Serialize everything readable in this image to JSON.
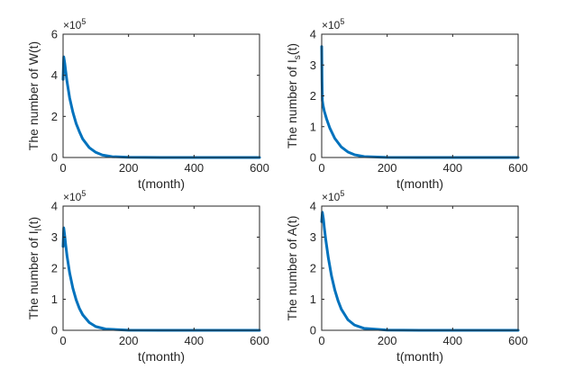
{
  "chart_data": [
    {
      "type": "line",
      "title": "",
      "xlabel": "t(month)",
      "ylabel": "The number of W(t)",
      "ylabel_main": "The number of W(t)",
      "ylabel_sub": "",
      "ylabel_tail": "",
      "xlim": [
        0,
        600
      ],
      "ylim": [
        0,
        6
      ],
      "xticks": [
        "0",
        "200",
        "400",
        "600"
      ],
      "yticks": [
        "0",
        "2",
        "4",
        "6"
      ],
      "exponent": "×10",
      "exponent_power": "5",
      "series": [
        {
          "name": "W(t)",
          "color": "#0072BD",
          "x": [
            0,
            2,
            5,
            8,
            12,
            20,
            30,
            40,
            50,
            60,
            80,
            100,
            120,
            150,
            200,
            300,
            400,
            600
          ],
          "y": [
            3.8,
            4.9,
            4.6,
            4.2,
            3.7,
            2.9,
            2.2,
            1.65,
            1.25,
            0.9,
            0.48,
            0.25,
            0.12,
            0.04,
            0.01,
            0.0,
            0.0,
            0.0
          ]
        }
      ]
    },
    {
      "type": "line",
      "title": "",
      "xlabel": "t(month)",
      "ylabel": "The number of Is(t)",
      "ylabel_main": "The number of I",
      "ylabel_sub": "s",
      "ylabel_tail": "(t)",
      "xlim": [
        0,
        600
      ],
      "ylim": [
        0,
        4
      ],
      "xticks": [
        "0",
        "200",
        "400",
        "600"
      ],
      "yticks": [
        "0",
        "1",
        "2",
        "3",
        "4"
      ],
      "exponent": "×10",
      "exponent_power": "5",
      "series": [
        {
          "name": "Is(t)",
          "color": "#0072BD",
          "x": [
            0,
            1,
            2,
            4,
            8,
            15,
            25,
            40,
            60,
            80,
            100,
            130,
            200,
            300,
            400,
            600
          ],
          "y": [
            3.6,
            2.5,
            1.85,
            1.7,
            1.5,
            1.25,
            0.95,
            0.62,
            0.34,
            0.18,
            0.09,
            0.03,
            0.005,
            0.0,
            0.0,
            0.0
          ]
        }
      ]
    },
    {
      "type": "line",
      "title": "",
      "xlabel": "t(month)",
      "ylabel": "The number of Il(t)",
      "ylabel_main": "The number of I",
      "ylabel_sub": "l",
      "ylabel_tail": "(t)",
      "xlim": [
        0,
        600
      ],
      "ylim": [
        0,
        4
      ],
      "xticks": [
        "0",
        "200",
        "400",
        "600"
      ],
      "yticks": [
        "0",
        "1",
        "2",
        "3",
        "4"
      ],
      "exponent": "×10",
      "exponent_power": "5",
      "series": [
        {
          "name": "Il(t)",
          "color": "#0072BD",
          "x": [
            0,
            2,
            5,
            8,
            12,
            20,
            30,
            40,
            50,
            60,
            80,
            100,
            130,
            200,
            300,
            400,
            600
          ],
          "y": [
            2.7,
            3.3,
            3.05,
            2.75,
            2.4,
            1.85,
            1.35,
            0.98,
            0.7,
            0.5,
            0.25,
            0.12,
            0.04,
            0.005,
            0.0,
            0.0,
            0.0
          ]
        }
      ]
    },
    {
      "type": "line",
      "title": "",
      "xlabel": "t(month)",
      "ylabel": "The number of A(t)",
      "ylabel_main": "The number of A(t)",
      "ylabel_sub": "",
      "ylabel_tail": "",
      "xlim": [
        0,
        600
      ],
      "ylim": [
        0,
        4
      ],
      "xticks": [
        "0",
        "200",
        "400",
        "600"
      ],
      "yticks": [
        "0",
        "1",
        "2",
        "3",
        "4"
      ],
      "exponent": "×10",
      "exponent_power": "5",
      "series": [
        {
          "name": "A(t)",
          "color": "#0072BD",
          "x": [
            0,
            2,
            5,
            8,
            12,
            20,
            30,
            40,
            50,
            60,
            80,
            100,
            130,
            200,
            300,
            400,
            600
          ],
          "y": [
            3.5,
            3.8,
            3.6,
            3.3,
            2.95,
            2.35,
            1.75,
            1.3,
            0.95,
            0.68,
            0.34,
            0.17,
            0.06,
            0.008,
            0.0,
            0.0,
            0.0
          ]
        }
      ]
    }
  ]
}
